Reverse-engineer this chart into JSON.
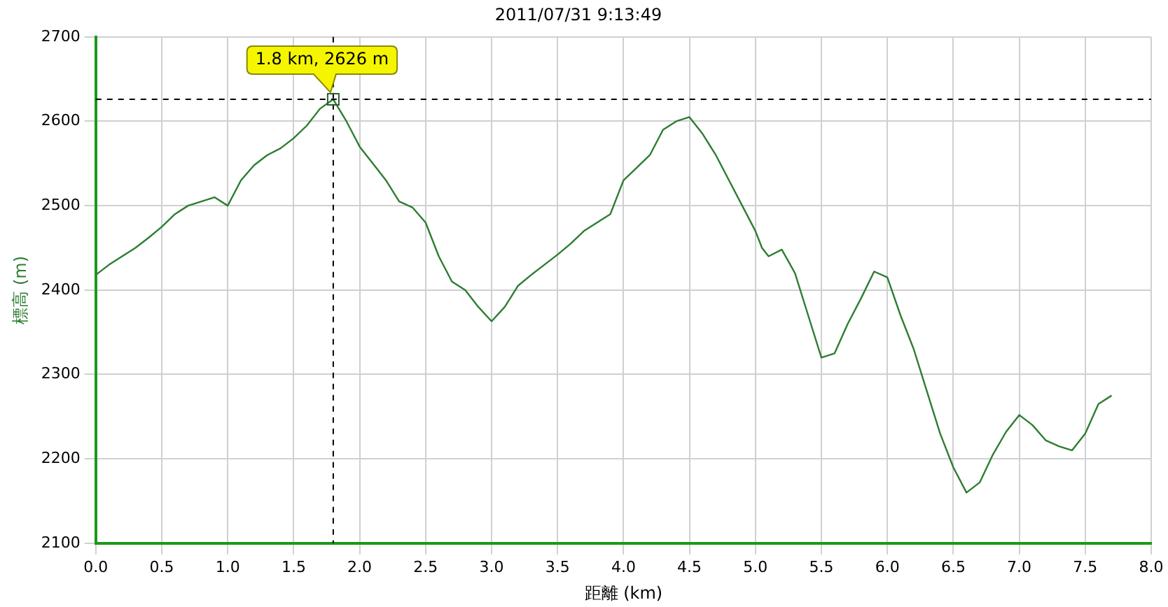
{
  "chart_data": {
    "type": "line",
    "title": "2011/07/31 9:13:49",
    "xlabel": "距離 (km)",
    "ylabel": "標高 (m)",
    "xlim": [
      0,
      8
    ],
    "xticks": [
      {
        "value": 0,
        "label": "0.0"
      },
      0.5,
      {
        "value": 1,
        "label": "1.0"
      },
      1.5,
      {
        "value": 2,
        "label": "2.0"
      },
      2.5,
      {
        "value": 3,
        "label": "3.0"
      },
      3.5,
      {
        "value": 4,
        "label": "4.0"
      },
      4.5,
      {
        "value": 5,
        "label": "5.0"
      },
      5.5,
      {
        "value": 6,
        "label": "6.0"
      },
      6.5,
      {
        "value": 7,
        "label": "7.0"
      },
      7.5,
      {
        "value": 8,
        "label": "8.0"
      }
    ],
    "ylim": [
      2100,
      2700
    ],
    "yticks": [
      2100,
      2200,
      2300,
      2400,
      2500,
      2600,
      2700
    ],
    "grid": true,
    "marker": "none",
    "line_style": "solid",
    "series": [
      {
        "color": "#2e7d32",
        "x": [
          0,
          0.1,
          0.2,
          0.3,
          0.4,
          0.5,
          0.6,
          0.7,
          0.8,
          0.9,
          1.0,
          1.1,
          1.2,
          1.3,
          1.4,
          1.5,
          1.6,
          1.7,
          1.8,
          1.9,
          2.0,
          2.1,
          2.2,
          2.3,
          2.4,
          2.5,
          2.6,
          2.7,
          2.8,
          2.9,
          3.0,
          3.1,
          3.2,
          3.3,
          3.4,
          3.5,
          3.6,
          3.7,
          3.8,
          3.9,
          4.0,
          4.1,
          4.2,
          4.3,
          4.4,
          4.5,
          4.6,
          4.7,
          4.8,
          4.9,
          5.0,
          5.05,
          5.1,
          5.2,
          5.3,
          5.4,
          5.5,
          5.6,
          5.7,
          5.8,
          5.9,
          6.0,
          6.1,
          6.2,
          6.3,
          6.4,
          6.5,
          6.6,
          6.7,
          6.8,
          6.9,
          7.0,
          7.1,
          7.2,
          7.3,
          7.4,
          7.5,
          7.6,
          7.7
        ],
        "values": [
          2418,
          2430,
          2440,
          2450,
          2462,
          2475,
          2490,
          2500,
          2505,
          2510,
          2500,
          2530,
          2548,
          2560,
          2568,
          2580,
          2595,
          2615,
          2626,
          2600,
          2570,
          2550,
          2530,
          2505,
          2498,
          2480,
          2440,
          2410,
          2400,
          2380,
          2363,
          2380,
          2405,
          2418,
          2430,
          2442,
          2455,
          2470,
          2480,
          2490,
          2530,
          2545,
          2560,
          2590,
          2600,
          2605,
          2585,
          2560,
          2530,
          2500,
          2470,
          2450,
          2440,
          2448,
          2420,
          2370,
          2320,
          2325,
          2360,
          2390,
          2422,
          2415,
          2370,
          2330,
          2280,
          2230,
          2190,
          2160,
          2172,
          2205,
          2232,
          2252,
          2240,
          2222,
          2215,
          2210,
          2230,
          2265,
          2275
        ]
      }
    ],
    "ref_lines": [
      {
        "axis": "x",
        "value": 1.8,
        "color": "#000000",
        "line_style": "dashed"
      },
      {
        "axis": "y",
        "value": 2626,
        "color": "#000000",
        "line_style": "dashed"
      }
    ],
    "annotations": [
      {
        "text": "1.8 km, 2626 m",
        "x": 1.8,
        "y": 2626
      }
    ]
  }
}
